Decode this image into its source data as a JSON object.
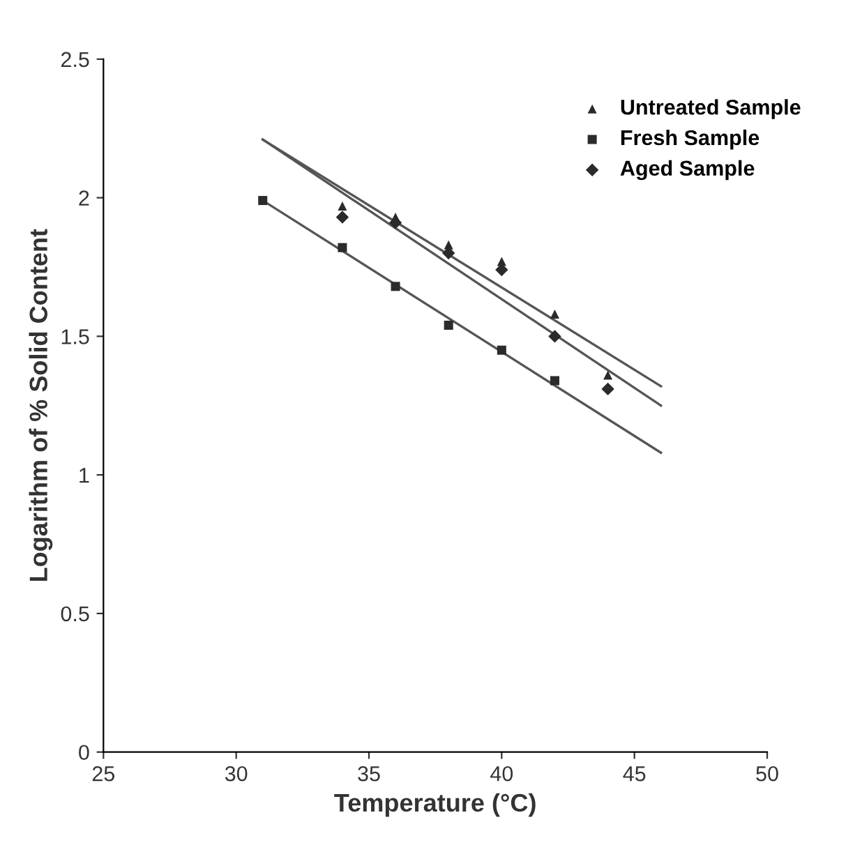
{
  "chart_data": {
    "type": "scatter",
    "xlabel": "Temperature (°C)",
    "ylabel": "Logarithm of % Solid Content",
    "xlim": [
      25,
      50
    ],
    "ylim": [
      0,
      2.5
    ],
    "xticks": [
      25,
      30,
      35,
      40,
      45,
      50
    ],
    "yticks": [
      0,
      0.5,
      1,
      1.5,
      2,
      2.5
    ],
    "grid": false,
    "legend": "top right",
    "series": [
      {
        "name": "Untreated Sample",
        "color": "#2b2b2b",
        "marker": "triangle",
        "x": [
          34,
          36,
          38,
          40,
          42,
          44
        ],
        "values": [
          1.97,
          1.93,
          1.83,
          1.77,
          1.58,
          1.36
        ]
      },
      {
        "name": "Fresh Sample",
        "color": "#2b2b2b",
        "marker": "square",
        "x": [
          31,
          34,
          36,
          38,
          40,
          42
        ],
        "values": [
          1.99,
          1.82,
          1.68,
          1.54,
          1.45,
          1.34
        ]
      },
      {
        "name": "Aged Sample",
        "color": "#2b2b2b",
        "marker": "diamond",
        "x": [
          34,
          36,
          38,
          40,
          42,
          44
        ],
        "values": [
          1.93,
          1.91,
          1.8,
          1.74,
          1.5,
          1.31
        ]
      },
      {
        "type": "line",
        "color": "#555555",
        "marker": "none",
        "x": [
          31,
          46
        ],
        "values": [
          2.21,
          1.32
        ]
      },
      {
        "type": "line",
        "color": "#555555",
        "marker": "none",
        "x": [
          31,
          46
        ],
        "values": [
          2.21,
          1.25
        ]
      },
      {
        "type": "line",
        "color": "#555555",
        "marker": "none",
        "x": [
          31,
          46
        ],
        "values": [
          1.99,
          1.08
        ]
      }
    ]
  }
}
